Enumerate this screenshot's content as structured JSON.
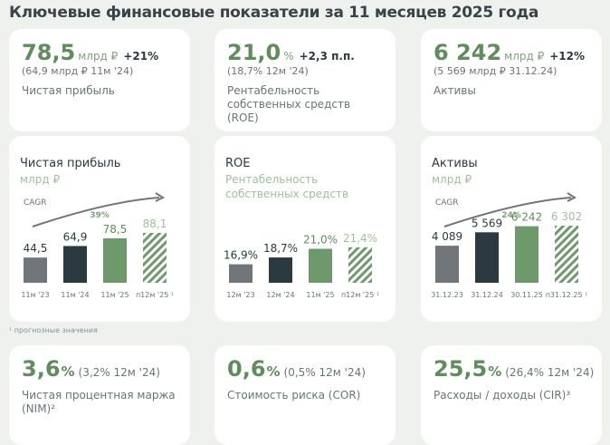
{
  "title": "Ключевые финансовые показатели за 11 месяцев 2025 года",
  "kpis": [
    {
      "value": "78,5",
      "unit": "млрд ₽",
      "change": "+21%",
      "previous": "(64,9 млрд ₽ 11м '24)",
      "label": "Чистая прибыль"
    },
    {
      "value": "21,0",
      "unit": "%",
      "change": "+2,3 п.п.",
      "previous": "(18,7% 12м '24)",
      "label": "Рентабельность собственных средств (ROE)"
    },
    {
      "value": "6 242",
      "unit": "млрд ₽",
      "change": "+12%",
      "previous": "(5 569 млрд ₽ 31.12.24)",
      "label": "Активы"
    }
  ],
  "chart_data": [
    {
      "type": "bar",
      "title": "Чистая прибыль",
      "subtitle": "млрд ₽",
      "cagr_title": "CAGR",
      "cagr": "39%",
      "categories": [
        "11м '23",
        "11м '24",
        "11м '25",
        "п12м '25 ¹"
      ],
      "values": [
        44.5,
        64.9,
        78.5,
        88.1
      ],
      "value_labels": [
        "44,5",
        "64,9",
        "78,5",
        "88,1"
      ],
      "colors": [
        "#70767a",
        "#2b3a40",
        "#6e9a6b",
        "#6e9a6b"
      ],
      "hatched": [
        false,
        false,
        false,
        true
      ],
      "ylim": [
        0,
        160
      ]
    },
    {
      "type": "bar",
      "title": "ROE",
      "subtitle": "Рентабельность собственных средств",
      "categories": [
        "12м '23",
        "12м '24",
        "11м '25",
        "п12м '25 ¹"
      ],
      "values": [
        16.9,
        18.7,
        21.0,
        21.4
      ],
      "value_labels": [
        "16,9%",
        "18,7%",
        "21,0%",
        "21,4%"
      ],
      "colors": [
        "#70767a",
        "#2b3a40",
        "#6e9a6b",
        "#6e9a6b"
      ],
      "hatched": [
        false,
        false,
        false,
        true
      ],
      "ylim": [
        12,
        36
      ]
    },
    {
      "type": "bar",
      "title": "Активы",
      "subtitle": "млрд ₽",
      "cagr_title": "CAGR",
      "cagr": "24%",
      "categories": [
        "31.12.23",
        "31.12.24",
        "30.11.25",
        "п31.12.25 ¹"
      ],
      "values": [
        4089,
        5569,
        6242,
        6302
      ],
      "value_labels": [
        "4 089",
        "5 569",
        "6 242",
        "6 302"
      ],
      "colors": [
        "#70767a",
        "#2b3a40",
        "#6e9a6b",
        "#6e9a6b"
      ],
      "hatched": [
        false,
        false,
        false,
        true
      ],
      "ylim": [
        0,
        10000
      ]
    }
  ],
  "footnote": "¹ прогнозные значения",
  "bottom_kpis": [
    {
      "value": "3,6",
      "unit": "%",
      "previous": "(3,2% 12м '24)",
      "label": "Чистая процентная маржа (NIM)²"
    },
    {
      "value": "0,6",
      "unit": "%",
      "previous": "(0,5% 12м '24)",
      "label": "Стоимость риска (COR)"
    },
    {
      "value": "25,5",
      "unit": "%",
      "previous": "(26,4% 12м '24)",
      "label": "Расходы / доходы (CIR)³"
    }
  ]
}
